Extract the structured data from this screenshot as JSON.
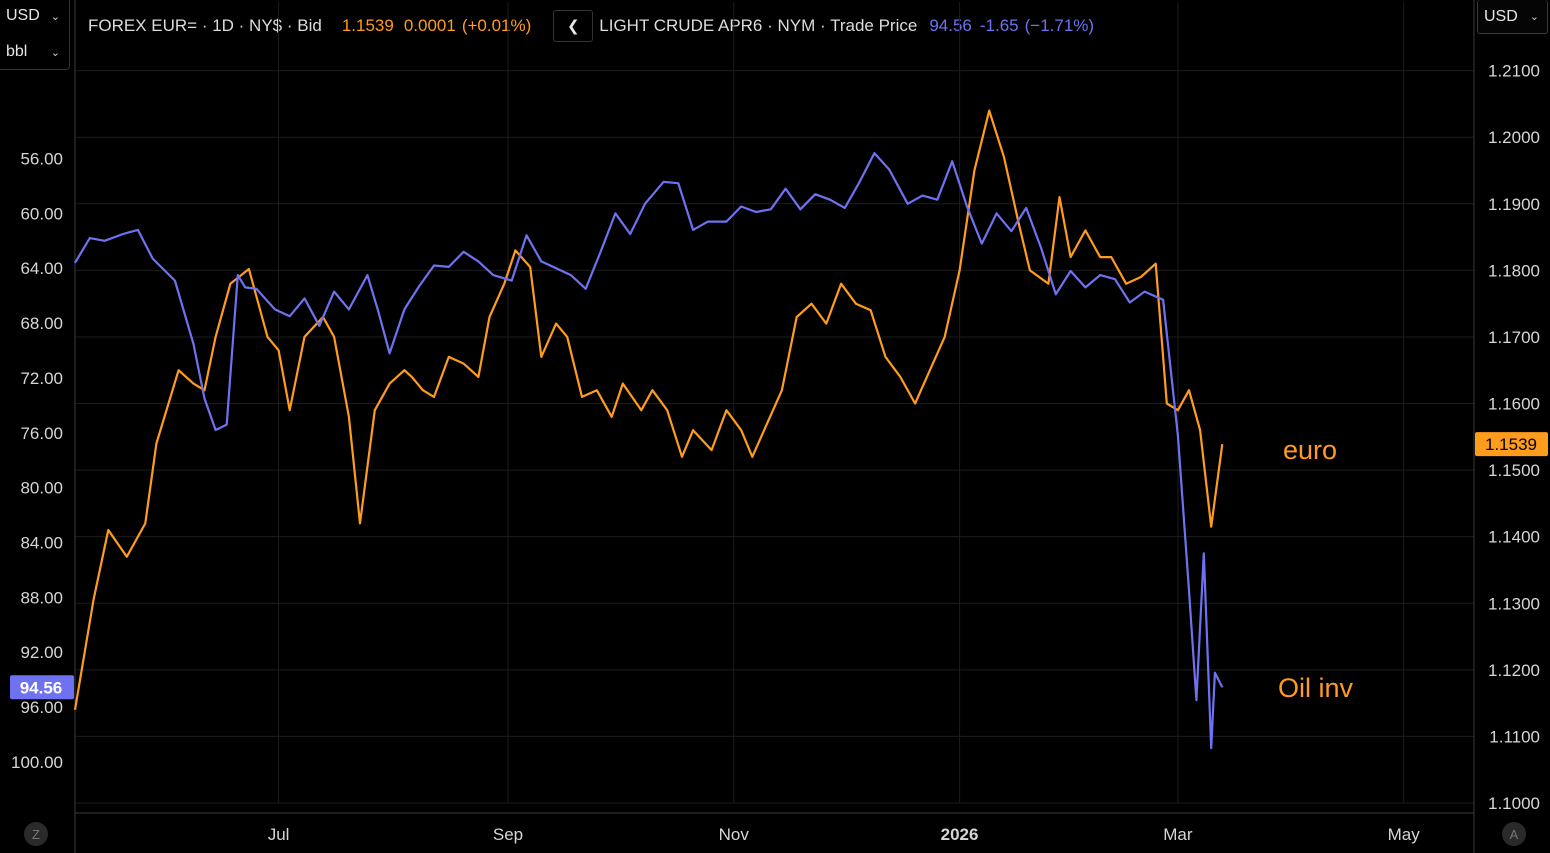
{
  "left_panel": {
    "currency": "USD",
    "unit": "bbl"
  },
  "right_panel": {
    "currency": "USD"
  },
  "legend": {
    "series1": {
      "name": "FOREX EUR= · 1D · NY$ · Bid",
      "price": "1.1539",
      "change": "0.0001",
      "pct": "(+0.01%)"
    },
    "series2": {
      "name": "LIGHT CRUDE APR6 · NYM · Trade Price",
      "price": "94.56",
      "change": "-1.65",
      "pct": "(−1.71%)"
    }
  },
  "bottom_icons": {
    "left": "Z",
    "right": "A"
  },
  "colors": {
    "euro": "#ff9c1e",
    "oil": "#6f72f0",
    "grid": "#1c1c1c",
    "axis_text": "#d6d6d6"
  },
  "chart_data": {
    "type": "line",
    "xlim": [
      "2025-05-07",
      "2026-05-20"
    ],
    "x_ticks": [
      "Jul",
      "Sep",
      "Nov",
      "2026",
      "Mar",
      "May"
    ],
    "left_axis": {
      "unit": "bbl",
      "inverted": true,
      "ylim": [
        103.0,
        47.5
      ],
      "ticks": [
        "56.00",
        "60.00",
        "64.00",
        "68.00",
        "72.00",
        "76.00",
        "80.00",
        "84.00",
        "88.00",
        "92.00",
        "96.00",
        "100.00"
      ],
      "last_value_label": "94.56"
    },
    "right_axis": {
      "currency": "USD",
      "ylim": [
        1.1,
        1.2143
      ],
      "ticks": [
        "1.2100",
        "1.2000",
        "1.1900",
        "1.1800",
        "1.1700",
        "1.1600",
        "1.1500",
        "1.1400",
        "1.1300",
        "1.1200",
        "1.1100",
        "1.1000"
      ],
      "last_value_label": "1.1539"
    },
    "annotations": [
      {
        "text": "euro",
        "series": "euro"
      },
      {
        "text": "Oil inv",
        "series": "euro"
      }
    ],
    "series": [
      {
        "name": "FOREX EUR=",
        "axis": "right",
        "color": "#ff9c1e",
        "dates": [
          "2025-05-07",
          "2025-05-12",
          "2025-05-16",
          "2025-05-21",
          "2025-05-26",
          "2025-05-29",
          "2025-06-04",
          "2025-06-08",
          "2025-06-11",
          "2025-06-14",
          "2025-06-18",
          "2025-06-23",
          "2025-06-28",
          "2025-07-01",
          "2025-07-04",
          "2025-07-08",
          "2025-07-13",
          "2025-07-16",
          "2025-07-20",
          "2025-07-23",
          "2025-07-27",
          "2025-07-31",
          "2025-08-04",
          "2025-08-06",
          "2025-08-09",
          "2025-08-12",
          "2025-08-16",
          "2025-08-20",
          "2025-08-24",
          "2025-08-27",
          "2025-08-31",
          "2025-09-03",
          "2025-09-07",
          "2025-09-10",
          "2025-09-14",
          "2025-09-17",
          "2025-09-21",
          "2025-09-25",
          "2025-09-29",
          "2025-10-02",
          "2025-10-07",
          "2025-10-10",
          "2025-10-14",
          "2025-10-18",
          "2025-10-21",
          "2025-10-26",
          "2025-10-30",
          "2025-11-03",
          "2025-11-06",
          "2025-11-10",
          "2025-11-14",
          "2025-11-18",
          "2025-11-22",
          "2025-11-26",
          "2025-11-30",
          "2025-12-04",
          "2025-12-08",
          "2025-12-12",
          "2025-12-16",
          "2025-12-20",
          "2025-12-24",
          "2025-12-28",
          "2026-01-01",
          "2026-01-05",
          "2026-01-09",
          "2026-01-13",
          "2026-01-17",
          "2026-01-20",
          "2026-01-25",
          "2026-01-28",
          "2026-01-31",
          "2026-02-04",
          "2026-02-08",
          "2026-02-11",
          "2026-02-15",
          "2026-02-19",
          "2026-02-23",
          "2026-02-26",
          "2026-03-01",
          "2026-03-04",
          "2026-03-07",
          "2026-03-10",
          "2026-03-13"
        ],
        "values": [
          1.114,
          1.1305,
          1.141,
          1.137,
          1.142,
          1.154,
          1.165,
          1.163,
          1.162,
          1.17,
          1.178,
          1.1802,
          1.17,
          1.168,
          1.159,
          1.17,
          1.173,
          1.17,
          1.158,
          1.142,
          1.159,
          1.163,
          1.165,
          1.164,
          1.162,
          1.161,
          1.167,
          1.166,
          1.164,
          1.173,
          1.178,
          1.183,
          1.1805,
          1.167,
          1.172,
          1.17,
          1.161,
          1.162,
          1.158,
          1.163,
          1.159,
          1.162,
          1.159,
          1.152,
          1.156,
          1.153,
          1.159,
          1.156,
          1.152,
          1.157,
          1.162,
          1.173,
          1.175,
          1.172,
          1.178,
          1.175,
          1.174,
          1.167,
          1.164,
          1.16,
          1.165,
          1.17,
          1.18,
          1.195,
          1.204,
          1.197,
          1.187,
          1.18,
          1.178,
          1.191,
          1.182,
          1.186,
          1.182,
          1.182,
          1.178,
          1.179,
          1.181,
          1.16,
          1.159,
          1.162,
          1.156,
          1.1415,
          1.1539
        ]
      },
      {
        "name": "LIGHT CRUDE APR6",
        "axis": "left",
        "color": "#6f72f0",
        "dates": [
          "2025-05-07",
          "2025-05-11",
          "2025-05-15",
          "2025-05-20",
          "2025-05-24",
          "2025-05-28",
          "2025-06-03",
          "2025-06-08",
          "2025-06-11",
          "2025-06-14",
          "2025-06-17",
          "2025-06-20",
          "2025-06-22",
          "2025-06-25",
          "2025-06-30",
          "2025-07-04",
          "2025-07-08",
          "2025-07-12",
          "2025-07-16",
          "2025-07-20",
          "2025-07-25",
          "2025-07-28",
          "2025-07-31",
          "2025-08-04",
          "2025-08-08",
          "2025-08-12",
          "2025-08-16",
          "2025-08-20",
          "2025-08-24",
          "2025-08-28",
          "2025-09-02",
          "2025-09-06",
          "2025-09-10",
          "2025-09-14",
          "2025-09-18",
          "2025-09-22",
          "2025-09-26",
          "2025-09-30",
          "2025-10-04",
          "2025-10-08",
          "2025-10-13",
          "2025-10-17",
          "2025-10-21",
          "2025-10-25",
          "2025-10-30",
          "2025-11-03",
          "2025-11-07",
          "2025-11-11",
          "2025-11-15",
          "2025-11-19",
          "2025-11-23",
          "2025-11-27",
          "2025-12-01",
          "2025-12-05",
          "2025-12-09",
          "2025-12-13",
          "2025-12-18",
          "2025-12-22",
          "2025-12-26",
          "2025-12-30",
          "2026-01-03",
          "2026-01-07",
          "2026-01-11",
          "2026-01-15",
          "2026-01-19",
          "2026-01-23",
          "2026-01-27",
          "2026-01-31",
          "2026-02-04",
          "2026-02-08",
          "2026-02-12",
          "2026-02-16",
          "2026-02-20",
          "2026-02-25",
          "2026-03-01",
          "2026-03-04",
          "2026-03-06",
          "2026-03-08",
          "2026-03-10",
          "2026-03-11",
          "2026-03-13"
        ],
        "values": [
          63.6,
          61.8,
          62.0,
          61.5,
          61.2,
          63.3,
          64.9,
          69.5,
          73.5,
          75.8,
          75.4,
          64.5,
          65.4,
          65.5,
          67.0,
          67.5,
          66.2,
          68.2,
          65.7,
          67.0,
          64.5,
          67.2,
          70.2,
          67.0,
          65.3,
          63.8,
          63.9,
          62.8,
          63.5,
          64.5,
          64.9,
          61.6,
          63.5,
          64.0,
          64.5,
          65.5,
          62.8,
          60.0,
          61.5,
          59.3,
          57.7,
          57.8,
          61.2,
          60.6,
          60.6,
          59.5,
          59.9,
          59.7,
          58.2,
          59.7,
          58.6,
          59.0,
          59.6,
          57.7,
          55.6,
          56.8,
          59.3,
          58.7,
          59.0,
          56.2,
          59.5,
          62.2,
          60.0,
          61.3,
          59.6,
          62.5,
          65.9,
          64.2,
          65.4,
          64.5,
          64.8,
          66.5,
          65.7,
          66.3,
          76.2,
          87.5,
          95.5,
          84.8,
          99.0,
          93.5,
          94.56
        ]
      }
    ]
  }
}
